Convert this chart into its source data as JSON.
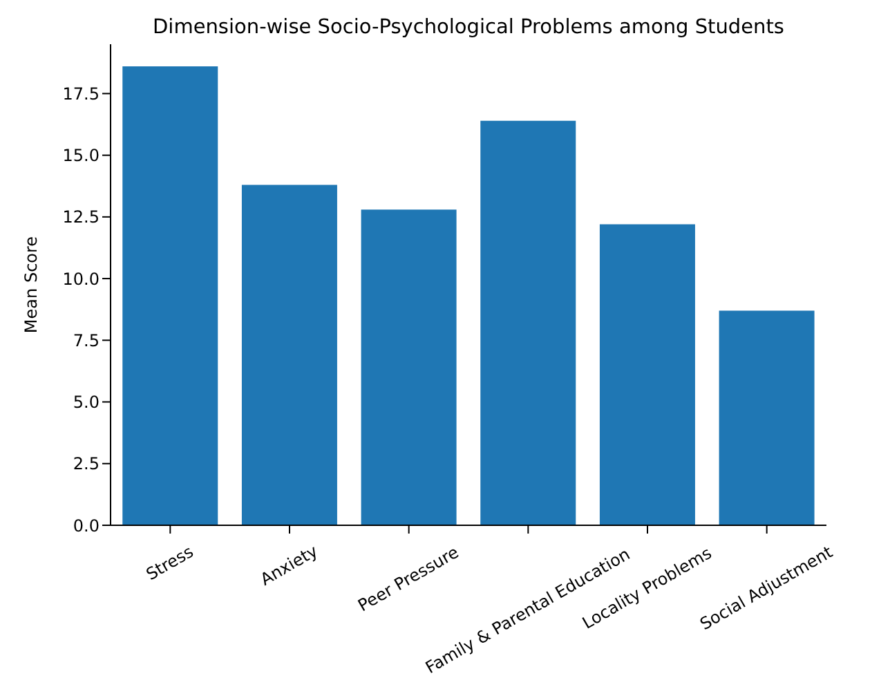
{
  "chart_data": {
    "type": "bar",
    "title": "Dimension-wise Socio-Psychological Problems among Students",
    "ylabel": "Mean Score",
    "categories": [
      "Stress",
      "Anxiety",
      "Peer Pressure",
      "Family & Parental Education",
      "Locality Problems",
      "Social Adjustment"
    ],
    "values": [
      18.6,
      13.8,
      12.8,
      16.4,
      12.2,
      8.7
    ],
    "color": "#1f77b4",
    "ylim": [
      0,
      19.5
    ],
    "yticks": [
      {
        "value": 0,
        "label": "0.0"
      },
      {
        "value": 2.5,
        "label": "2.5"
      },
      {
        "value": 5,
        "label": "5.0"
      },
      {
        "value": 7.5,
        "label": "7.5"
      },
      {
        "value": 10,
        "label": "10.0"
      },
      {
        "value": 12.5,
        "label": "12.5"
      },
      {
        "value": 15,
        "label": "15.0"
      },
      {
        "value": 17.5,
        "label": "17.5"
      }
    ],
    "grid": false
  }
}
